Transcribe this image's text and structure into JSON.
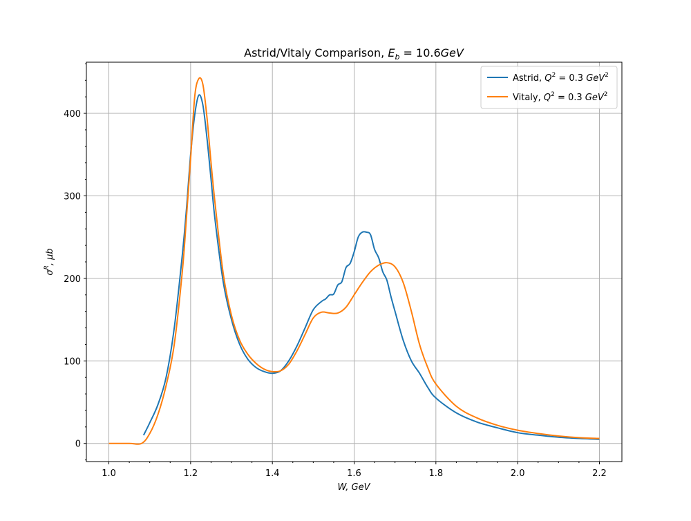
{
  "chart_data": {
    "type": "line",
    "title": {
      "main": "Astrid/Vitaly Comparison, ",
      "math_var": "E",
      "math_sub": "b",
      "math_rest": " = 10.6",
      "math_unit": "GeV"
    },
    "xlabel": "W, GeV",
    "ylabel": {
      "sym": "σ",
      "sup": "R",
      "rest": ", μb"
    },
    "xlim": [
      0.945,
      2.255
    ],
    "ylim": [
      -22,
      462
    ],
    "x_ticks": [
      1.0,
      1.2,
      1.4,
      1.6,
      1.8,
      2.0,
      2.2
    ],
    "x_tick_labels": [
      "1.0",
      "1.2",
      "1.4",
      "1.6",
      "1.8",
      "2.0",
      "2.2"
    ],
    "y_ticks": [
      0,
      100,
      200,
      300,
      400
    ],
    "y_tick_labels": [
      "0",
      "100",
      "200",
      "300",
      "400"
    ],
    "grid": true,
    "legend_position": "top-right",
    "series": [
      {
        "name": "Astrid, Q² = 0.3 GeV²",
        "legend": {
          "prefix": "Astrid, ",
          "q": "Q",
          "sup1": "2",
          "mid": " = 0.3 ",
          "unit": "GeV",
          "sup2": "2"
        },
        "color": "#1f77b4",
        "points": [
          [
            1.085,
            10
          ],
          [
            1.1,
            25
          ],
          [
            1.12,
            47
          ],
          [
            1.14,
            80
          ],
          [
            1.16,
            140
          ],
          [
            1.18,
            230
          ],
          [
            1.19,
            285
          ],
          [
            1.2,
            350
          ],
          [
            1.21,
            398
          ],
          [
            1.22,
            422
          ],
          [
            1.23,
            410
          ],
          [
            1.24,
            370
          ],
          [
            1.25,
            320
          ],
          [
            1.26,
            270
          ],
          [
            1.28,
            195
          ],
          [
            1.3,
            150
          ],
          [
            1.32,
            120
          ],
          [
            1.34,
            102
          ],
          [
            1.36,
            92
          ],
          [
            1.38,
            87
          ],
          [
            1.4,
            85
          ],
          [
            1.42,
            88
          ],
          [
            1.44,
            100
          ],
          [
            1.46,
            118
          ],
          [
            1.48,
            140
          ],
          [
            1.5,
            162
          ],
          [
            1.52,
            172
          ],
          [
            1.53,
            175
          ],
          [
            1.54,
            180
          ],
          [
            1.55,
            181
          ],
          [
            1.56,
            192
          ],
          [
            1.57,
            196
          ],
          [
            1.58,
            213
          ],
          [
            1.59,
            218
          ],
          [
            1.6,
            232
          ],
          [
            1.61,
            250
          ],
          [
            1.62,
            256
          ],
          [
            1.63,
            256
          ],
          [
            1.64,
            253
          ],
          [
            1.65,
            235
          ],
          [
            1.66,
            225
          ],
          [
            1.67,
            208
          ],
          [
            1.68,
            198
          ],
          [
            1.69,
            178
          ],
          [
            1.7,
            160
          ],
          [
            1.72,
            125
          ],
          [
            1.74,
            100
          ],
          [
            1.76,
            85
          ],
          [
            1.78,
            68
          ],
          [
            1.8,
            55
          ],
          [
            1.85,
            37
          ],
          [
            1.9,
            26
          ],
          [
            1.95,
            19
          ],
          [
            2.0,
            13
          ],
          [
            2.05,
            10
          ],
          [
            2.1,
            7.5
          ],
          [
            2.15,
            6
          ],
          [
            2.2,
            5
          ]
        ]
      },
      {
        "name": "Vitaly, Q² = 0.3 GeV²",
        "legend": {
          "prefix": "Vitaly, ",
          "q": "Q",
          "sup1": "2",
          "mid": " = 0.3 ",
          "unit": "GeV",
          "sup2": "2"
        },
        "color": "#ff7f0e",
        "points": [
          [
            1.0,
            0
          ],
          [
            1.05,
            0
          ],
          [
            1.08,
            0
          ],
          [
            1.1,
            12
          ],
          [
            1.12,
            35
          ],
          [
            1.14,
            70
          ],
          [
            1.16,
            120
          ],
          [
            1.18,
            210
          ],
          [
            1.19,
            275
          ],
          [
            1.2,
            345
          ],
          [
            1.21,
            420
          ],
          [
            1.22,
            442
          ],
          [
            1.23,
            435
          ],
          [
            1.24,
            395
          ],
          [
            1.25,
            340
          ],
          [
            1.26,
            290
          ],
          [
            1.28,
            205
          ],
          [
            1.3,
            155
          ],
          [
            1.32,
            125
          ],
          [
            1.34,
            108
          ],
          [
            1.36,
            97
          ],
          [
            1.38,
            90
          ],
          [
            1.4,
            87
          ],
          [
            1.42,
            88
          ],
          [
            1.44,
            96
          ],
          [
            1.46,
            112
          ],
          [
            1.48,
            132
          ],
          [
            1.5,
            152
          ],
          [
            1.52,
            159
          ],
          [
            1.54,
            158
          ],
          [
            1.56,
            158
          ],
          [
            1.58,
            165
          ],
          [
            1.6,
            180
          ],
          [
            1.62,
            195
          ],
          [
            1.64,
            208
          ],
          [
            1.66,
            216
          ],
          [
            1.68,
            219
          ],
          [
            1.7,
            214
          ],
          [
            1.72,
            195
          ],
          [
            1.74,
            160
          ],
          [
            1.76,
            120
          ],
          [
            1.78,
            92
          ],
          [
            1.8,
            72
          ],
          [
            1.85,
            45
          ],
          [
            1.9,
            31
          ],
          [
            1.95,
            22
          ],
          [
            2.0,
            16
          ],
          [
            2.05,
            12
          ],
          [
            2.1,
            9
          ],
          [
            2.15,
            7
          ],
          [
            2.2,
            6
          ]
        ]
      }
    ]
  }
}
